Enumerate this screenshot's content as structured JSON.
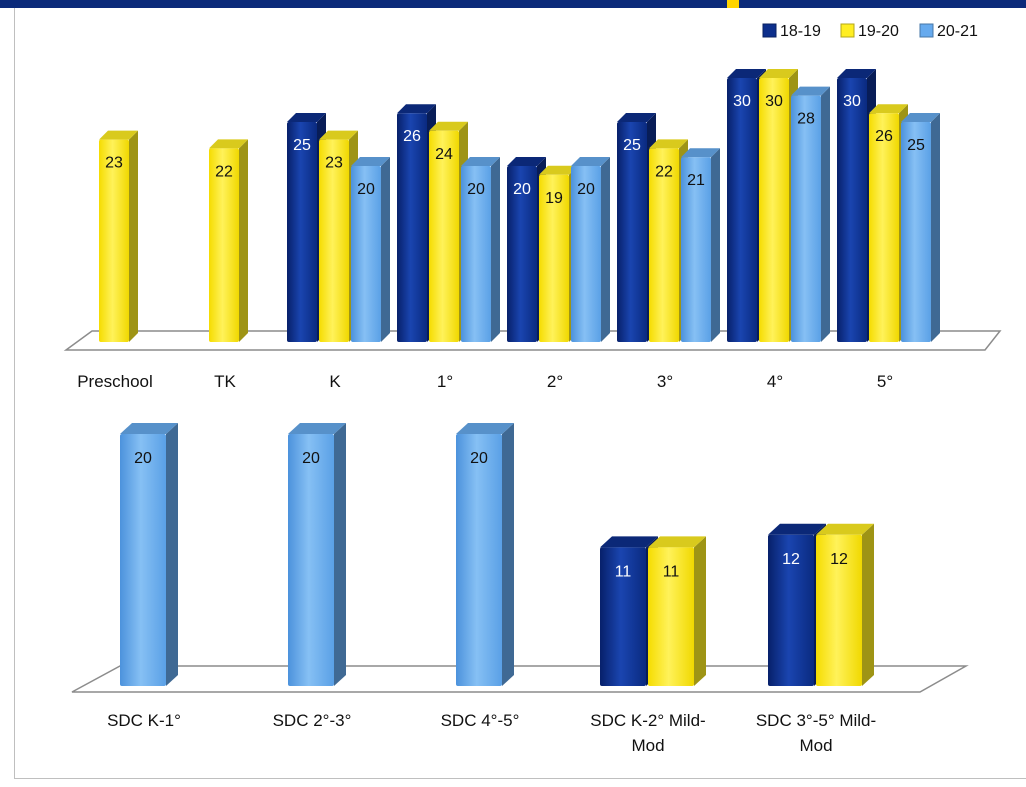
{
  "chart_data": [
    {
      "type": "bar",
      "title": "",
      "xlabel": "",
      "ylabel": "",
      "ylim": [
        0,
        30
      ],
      "categories": [
        "Preschool",
        "TK",
        "K",
        "1°",
        "2°",
        "3°",
        "4°",
        "5°"
      ],
      "series": [
        {
          "name": "18-19",
          "color": "#0d2f8c",
          "values": [
            null,
            null,
            25,
            26,
            20,
            25,
            30,
            30
          ]
        },
        {
          "name": "19-20",
          "color": "#ffee22",
          "values": [
            23,
            22,
            23,
            24,
            19,
            22,
            30,
            26
          ]
        },
        {
          "name": "20-21",
          "color": "#66aaee",
          "values": [
            null,
            null,
            20,
            20,
            20,
            21,
            28,
            25
          ]
        }
      ],
      "legend": {
        "position": "top-right",
        "labels": [
          "18-19",
          "19-20",
          "20-21"
        ]
      },
      "grid": false
    },
    {
      "type": "bar",
      "title": "",
      "xlabel": "",
      "ylabel": "",
      "ylim": [
        0,
        30
      ],
      "categories": [
        "SDC K-1°",
        "SDC 2°-3°",
        "SDC 4°-5°",
        "SDC K-2° Mild-Mod",
        "SDC 3°-5° Mild-Mod"
      ],
      "series": [
        {
          "name": "18-19",
          "color": "#0d2f8c",
          "values": [
            null,
            null,
            null,
            11,
            12
          ]
        },
        {
          "name": "19-20",
          "color": "#ffee22",
          "values": [
            null,
            null,
            null,
            11,
            12
          ]
        },
        {
          "name": "20-21",
          "color": "#66aaee",
          "values": [
            20,
            20,
            20,
            null,
            null
          ]
        }
      ],
      "grid": false
    }
  ]
}
